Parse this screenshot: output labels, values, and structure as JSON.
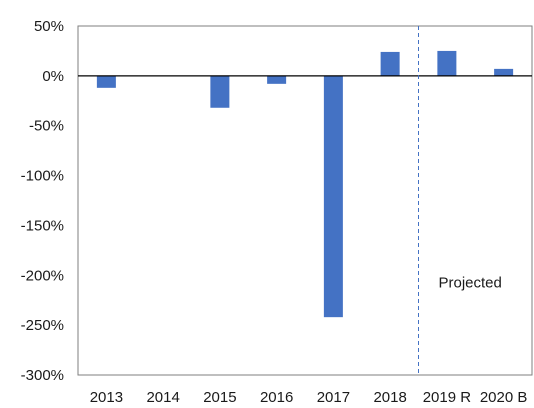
{
  "chart_data": {
    "type": "bar",
    "title": "",
    "xlabel": "",
    "ylabel": "",
    "categories": [
      "2013",
      "2014",
      "2015",
      "2016",
      "2017",
      "2018",
      "2019 R",
      "2020 B"
    ],
    "values": [
      -12,
      0,
      -32,
      -8,
      -242,
      24,
      25,
      7
    ],
    "ylim": [
      -300,
      50
    ],
    "yticks": [
      50,
      0,
      -50,
      -100,
      -150,
      -200,
      -250,
      -300
    ],
    "ytick_labels": [
      "50%",
      "0%",
      "-50%",
      "-100%",
      "-150%",
      "-200%",
      "-250%",
      "-300%"
    ],
    "bar_color": "#4472C4",
    "grid": false,
    "legend": "none",
    "projection_divider": {
      "after_category": "2018",
      "style": "dashed",
      "color": "#4472C4"
    },
    "annotation": "Projected"
  }
}
